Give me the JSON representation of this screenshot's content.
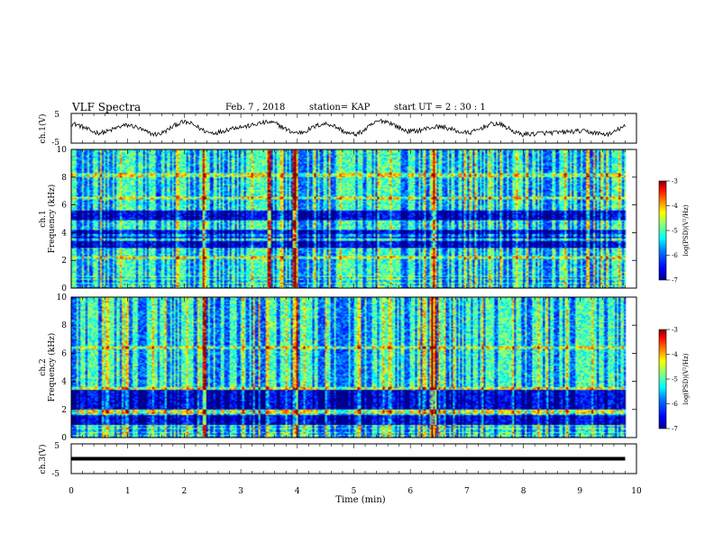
{
  "header": {
    "title": "VLF Spectra",
    "date": "Feb. 7 , 2018",
    "station": "station= KAP",
    "start_ut": "start  UT =   2 : 30 : 1"
  },
  "chart_data": [
    {
      "type": "line",
      "panel": "ch1-waveform",
      "ylabel": "ch.1(V)",
      "ylim": [
        -5,
        5
      ],
      "yticks": [
        "5",
        "-5"
      ],
      "x": [
        0.0,
        0.5,
        1.0,
        1.5,
        2.0,
        2.5,
        3.0,
        3.5,
        4.0,
        4.5,
        5.0,
        5.5,
        6.0,
        6.5,
        7.0,
        7.5,
        8.0,
        8.5,
        9.0,
        9.5,
        9.8
      ],
      "values": [
        1.5,
        -1.5,
        1.0,
        -2.0,
        2.0,
        -1.5,
        0.5,
        2.0,
        -1.5,
        1.5,
        -2.0,
        2.5,
        -1.0,
        0.5,
        -1.5,
        1.5,
        -2.0,
        -1.5,
        -1.0,
        -2.0,
        0.5
      ]
    },
    {
      "type": "heatmap",
      "panel": "ch1-spectrogram",
      "ylabel": "ch.1\nFrequency (kHz)",
      "ylim": [
        0,
        10
      ],
      "yticks": [
        "0",
        "2",
        "4",
        "6",
        "8",
        "10"
      ],
      "colorbar_label": "log(PSD)(V²/Hz)",
      "colorbar_range": [
        -7,
        -3
      ],
      "colorbar_ticks": [
        "-3",
        "-4",
        "-5",
        "-6",
        "-7"
      ],
      "dark_bands_khz": [
        [
          2.9,
          3.4
        ],
        [
          3.6,
          4.2
        ],
        [
          4.9,
          5.6
        ]
      ],
      "bright_lines_khz": [
        2.2,
        3.8,
        6.5,
        8.2
      ],
      "strong_events_min": [
        2.35,
        3.5,
        3.95,
        6.4
      ]
    },
    {
      "type": "heatmap",
      "panel": "ch2-spectrogram",
      "ylabel": "ch.2\nFrequency (kHz)",
      "ylim": [
        0,
        10
      ],
      "yticks": [
        "0",
        "2",
        "4",
        "6",
        "8",
        "10"
      ],
      "colorbar_label": "log(PSD)(V²/Hz)",
      "colorbar_range": [
        -7,
        -3
      ],
      "colorbar_ticks": [
        "-3",
        "-4",
        "-5",
        "-6",
        "-7"
      ],
      "dark_bands_khz": [
        [
          2.0,
          3.4
        ],
        [
          0.3,
          1.6
        ]
      ],
      "bright_lines_khz": [
        1.8,
        3.5,
        6.4
      ],
      "strong_events_min": [
        2.35,
        3.95,
        6.4
      ]
    },
    {
      "type": "line",
      "panel": "ch3-waveform",
      "ylabel": "ch.3(V)",
      "ylim": [
        -5,
        5
      ],
      "yticks": [
        "5",
        "-5"
      ],
      "xlabel": "Time (min)",
      "xlim": [
        0,
        10
      ],
      "xticks": [
        "0",
        "1",
        "2",
        "3",
        "4",
        "5",
        "6",
        "7",
        "8",
        "9",
        "10"
      ],
      "x": [
        0.0,
        9.8
      ],
      "values": [
        0.0,
        0.0
      ]
    }
  ],
  "colors": {
    "jet": [
      "#00008f",
      "#0000ff",
      "#0080ff",
      "#00ffff",
      "#80ff80",
      "#ffff00",
      "#ff8000",
      "#ff0000",
      "#800000"
    ]
  }
}
